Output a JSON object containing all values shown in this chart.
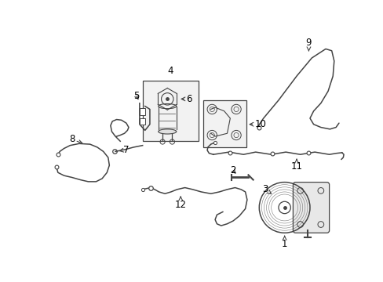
{
  "bg_color": "#ffffff",
  "fig_width": 4.89,
  "fig_height": 3.6,
  "dpi": 100,
  "line_color": "#444444",
  "line_width": 1.1
}
